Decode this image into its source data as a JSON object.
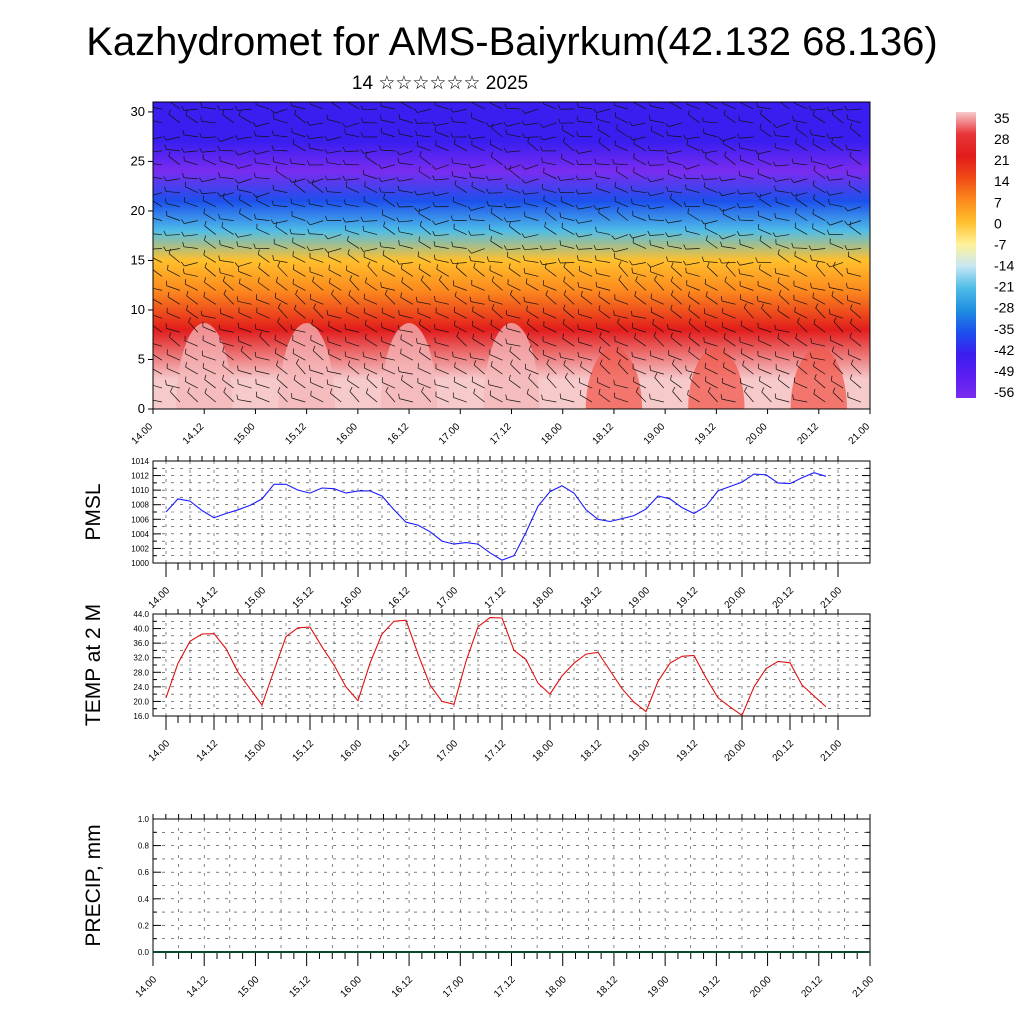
{
  "header": {
    "title": "Kazhydromet for AMS-Baiyrkum(42.132 68.136)",
    "subtitle": "14 ☆☆☆☆☆☆ 2025"
  },
  "chart_data": [
    {
      "type": "heatmap",
      "name": "vertical-cross-section",
      "xlabel": "",
      "ylabel": "",
      "x_tick_labels": [
        "14.00",
        "14.12",
        "15.00",
        "15.12",
        "16.00",
        "16.12",
        "17.00",
        "17.12",
        "18.00",
        "18.12",
        "19.00",
        "19.12",
        "20.00",
        "20.12",
        "21.00"
      ],
      "y_ticks": [
        0,
        5,
        10,
        15,
        20,
        25,
        30
      ],
      "ylim": [
        0,
        31
      ],
      "colorbar_labels": [
        "35",
        "28",
        "21",
        "14",
        "7",
        "0",
        "-7",
        "-14",
        "-21",
        "-28",
        "-35",
        "-42",
        "-49",
        "-56"
      ],
      "colorbar_colors": [
        "#f6c9cb",
        "#e8363a",
        "#e21c1c",
        "#f04a16",
        "#fc8a1e",
        "#ffc02c",
        "#fff29a",
        "#c8e8f4",
        "#4fbde8",
        "#1f8fe0",
        "#1c50ec",
        "#3a1ef0",
        "#5b1ef2",
        "#7a2cf0"
      ],
      "profile": [
        {
          "height": 0,
          "temperature": 35
        },
        {
          "height": 3,
          "temperature": 28
        },
        {
          "height": 8,
          "temperature": 18
        },
        {
          "height": 12,
          "temperature": 5
        },
        {
          "height": 15,
          "temperature": -7
        },
        {
          "height": 18,
          "temperature": -28
        },
        {
          "height": 21,
          "temperature": -42
        },
        {
          "height": 24,
          "temperature": -58
        },
        {
          "height": 27,
          "temperature": -49
        },
        {
          "height": 31,
          "temperature": -45
        }
      ],
      "wind_barbs": true
    },
    {
      "type": "line",
      "name": "pmsl",
      "ylabel": "PMSL",
      "ylim": [
        1000,
        1014
      ],
      "y_tick_labels": [
        "1014",
        "1012",
        "1010",
        "1008",
        "1006",
        "1004",
        "1002",
        "1000"
      ],
      "x_tick_labels": [
        "14.00",
        "14.12",
        "15.00",
        "15.12",
        "16.00",
        "16.12",
        "17.00",
        "17.12",
        "18.00",
        "18.12",
        "19.00",
        "19.12",
        "20.00",
        "20.12",
        "21.00"
      ],
      "color": "#1a1aff",
      "series": [
        {
          "x_hours": [
            0,
            3,
            6,
            9,
            12,
            15,
            18,
            21,
            24,
            27,
            30,
            33,
            36,
            39,
            42,
            45,
            48,
            51,
            54,
            57,
            60,
            63,
            66,
            69,
            72,
            75,
            78,
            81,
            84,
            87,
            90,
            93,
            96,
            99,
            102,
            105,
            108,
            111,
            114,
            117,
            120,
            123,
            126,
            129,
            132,
            135,
            138,
            141,
            144,
            147,
            150,
            153,
            156,
            159,
            162,
            165
          ],
          "values": [
            1007,
            1008.8,
            1008.5,
            1007.2,
            1006.2,
            1006.8,
            1007.3,
            1007.9,
            1008.8,
            1010.8,
            1010.8,
            1010,
            1009.6,
            1010.3,
            1010.2,
            1009.6,
            1009.9,
            1009.9,
            1009.2,
            1007.3,
            1005.6,
            1005.2,
            1004.3,
            1003,
            1002.6,
            1002.8,
            1002.6,
            1001.4,
            1000.4,
            1001,
            1004.2,
            1007.8,
            1009.8,
            1010.6,
            1009.6,
            1007.3,
            1006,
            1005.7,
            1006.1,
            1006.5,
            1007.4,
            1009.2,
            1008.8,
            1007.6,
            1006.8,
            1007.8,
            1009.9,
            1010.5,
            1011.1,
            1012.2,
            1012.1,
            1011,
            1010.9,
            1011.7,
            1012.4,
            1011.9
          ]
        }
      ]
    },
    {
      "type": "line",
      "name": "temp-2m",
      "ylabel": "TEMP at 2 M",
      "ylim": [
        16,
        44
      ],
      "y_tick_labels": [
        "44.0",
        "40.0",
        "36.0",
        "32.0",
        "28.0",
        "24.0",
        "20.0",
        "16.0"
      ],
      "x_tick_labels": [
        "14.00",
        "14.12",
        "15.00",
        "15.12",
        "16.00",
        "16.12",
        "17.00",
        "17.12",
        "18.00",
        "18.12",
        "19.00",
        "19.12",
        "20.00",
        "20.12",
        "21.00"
      ],
      "color": "#e01010",
      "series": [
        {
          "x_hours": [
            0,
            3,
            6,
            9,
            12,
            15,
            18,
            21,
            24,
            27,
            30,
            33,
            36,
            39,
            42,
            45,
            48,
            51,
            54,
            57,
            60,
            63,
            66,
            69,
            72,
            75,
            78,
            81,
            84,
            87,
            90,
            93,
            96,
            99,
            102,
            105,
            108,
            111,
            114,
            117,
            120,
            123,
            126,
            129,
            132,
            135,
            138,
            141,
            144,
            147,
            150,
            153,
            156,
            159,
            162,
            165
          ],
          "values": [
            21,
            30.5,
            36.5,
            38.5,
            38.6,
            34.5,
            28,
            23.5,
            19,
            28.5,
            37.8,
            40.2,
            40.4,
            35,
            30,
            24,
            20.2,
            30.5,
            38.5,
            42,
            42.3,
            33,
            24.5,
            20,
            19.2,
            31,
            40.5,
            43,
            42.9,
            34,
            31.5,
            25,
            22,
            27,
            30.5,
            33,
            33.5,
            28.5,
            23.5,
            19.8,
            17.2,
            25.5,
            30.5,
            32.4,
            32.6,
            26.5,
            21,
            18.5,
            16.2,
            24,
            29,
            31,
            30.6,
            24.5,
            21.5,
            18.5
          ]
        }
      ]
    },
    {
      "type": "bar",
      "name": "precip",
      "ylabel": "PRECIP, mm",
      "ylim": [
        0,
        1
      ],
      "y_tick_labels": [
        "1.0",
        "0.8",
        "0.6",
        "0.4",
        "0.2",
        "0.0"
      ],
      "x_tick_labels": [
        "14.00",
        "14.12",
        "15.00",
        "15.12",
        "16.00",
        "16.12",
        "17.00",
        "17.12",
        "18.00",
        "18.12",
        "19.00",
        "19.12",
        "20.00",
        "20.12",
        "21.00"
      ],
      "values": []
    }
  ]
}
